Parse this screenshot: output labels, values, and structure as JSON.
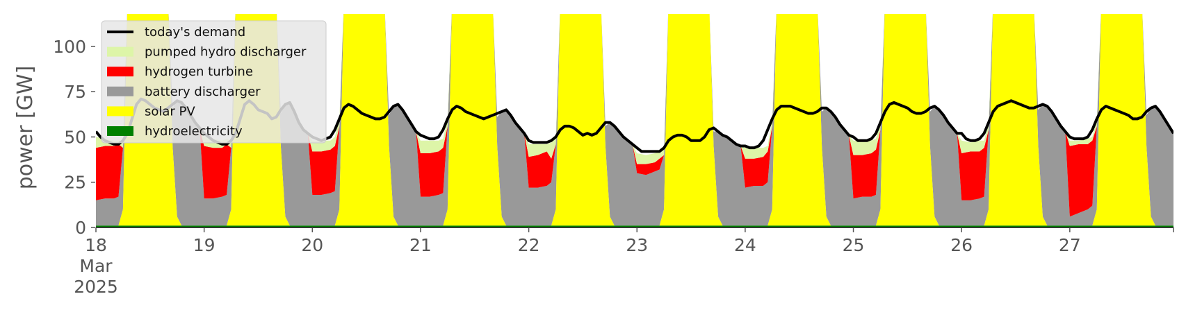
{
  "chart_data": {
    "type": "area",
    "ylabel": "power [GW]",
    "ylim": [
      0,
      118
    ],
    "xlim": [
      "2025-03-18T00:00",
      "2025-03-27T23:00"
    ],
    "yticks": [
      0,
      25,
      50,
      75,
      100
    ],
    "xticks": [
      {
        "date": "2025-03-18",
        "label": [
          "18",
          "Mar",
          "2025"
        ]
      },
      {
        "date": "2025-03-19",
        "label": [
          "19"
        ]
      },
      {
        "date": "2025-03-20",
        "label": [
          "20"
        ]
      },
      {
        "date": "2025-03-21",
        "label": [
          "21"
        ]
      },
      {
        "date": "2025-03-22",
        "label": [
          "22"
        ]
      },
      {
        "date": "2025-03-23",
        "label": [
          "23"
        ]
      },
      {
        "date": "2025-03-24",
        "label": [
          "24"
        ]
      },
      {
        "date": "2025-03-25",
        "label": [
          "25"
        ]
      },
      {
        "date": "2025-03-26",
        "label": [
          "26"
        ]
      },
      {
        "date": "2025-03-27",
        "label": [
          "27"
        ]
      }
    ],
    "grid": false,
    "legend_position": "top-left",
    "stack_order": [
      "hydroelectricity",
      "solar PV",
      "battery discharger",
      "hydrogen turbine",
      "pumped hydro discharger"
    ],
    "series": [
      {
        "name": "today's demand",
        "kind": "line",
        "color": "#000000"
      },
      {
        "name": "pumped hydro discharger",
        "kind": "area",
        "color": "#ddf5a8"
      },
      {
        "name": "hydrogen turbine",
        "kind": "area",
        "color": "#ff0000"
      },
      {
        "name": "battery discharger",
        "kind": "area",
        "color": "#999999"
      },
      {
        "name": "solar PV",
        "kind": "area",
        "color": "#ffff00"
      },
      {
        "name": "hydroelectricity",
        "kind": "area",
        "color": "#008000"
      }
    ],
    "legend": [
      {
        "label": "today's demand",
        "color": "#000000",
        "kind": "line"
      },
      {
        "label": "pumped hydro discharger",
        "color": "#ddf5a8",
        "kind": "patch"
      },
      {
        "label": "hydrogen turbine",
        "color": "#ff0000",
        "kind": "patch"
      },
      {
        "label": "battery discharger",
        "color": "#999999",
        "kind": "patch"
      },
      {
        "label": "solar PV",
        "color": "#ffff00",
        "kind": "patch"
      },
      {
        "label": "hydroelectricity",
        "color": "#008000",
        "kind": "patch"
      }
    ],
    "days": [
      {
        "date": "2025-03-18",
        "demand": [
          53,
          50,
          48,
          47,
          46,
          46,
          48,
          52,
          60,
          68,
          71,
          70,
          68,
          66,
          65,
          64,
          66,
          68,
          70,
          69,
          66,
          62,
          58,
          55
        ],
        "batt_night": [
          15,
          16,
          16,
          17
        ],
        "h2": [
          44,
          45,
          45,
          46
        ],
        "phd": [
          50,
          49,
          48,
          48
        ],
        "batt_eve": [
          45,
          48,
          52,
          55
        ]
      },
      {
        "date": "2025-03-19",
        "demand": [
          52,
          50,
          48,
          47,
          46,
          46,
          48,
          52,
          60,
          68,
          70,
          68,
          65,
          64,
          63,
          60,
          61,
          65,
          68,
          69,
          64,
          58,
          54,
          52
        ],
        "batt_night": [
          16,
          16,
          17,
          18
        ],
        "h2": [
          45,
          44,
          44,
          46
        ],
        "phd": [
          50,
          49,
          48,
          49
        ],
        "batt_eve": [
          46,
          50,
          55,
          57
        ]
      },
      {
        "date": "2025-03-20",
        "demand": [
          50,
          49,
          48,
          49,
          50,
          54,
          60,
          66,
          68,
          67,
          65,
          63,
          62,
          61,
          60,
          60,
          61,
          64,
          67,
          68,
          65,
          61,
          57,
          53
        ],
        "batt_night": [
          18,
          18,
          19,
          20
        ],
        "h2": [
          42,
          42,
          43,
          45
        ],
        "phd": [
          48,
          48,
          48,
          50
        ],
        "batt_eve": [
          52,
          58,
          62,
          60
        ]
      },
      {
        "date": "2025-03-21",
        "demand": [
          51,
          50,
          49,
          49,
          50,
          54,
          60,
          65,
          67,
          66,
          64,
          63,
          62,
          61,
          60,
          61,
          62,
          63,
          64,
          65,
          62,
          58,
          55,
          52
        ],
        "batt_night": [
          17,
          17,
          18,
          19
        ],
        "h2": [
          41,
          41,
          42,
          44
        ],
        "phd": [
          48,
          48,
          48,
          49
        ],
        "batt_eve": [
          50,
          55,
          60,
          62
        ]
      },
      {
        "date": "2025-03-22",
        "demand": [
          48,
          47,
          47,
          47,
          47,
          48,
          50,
          54,
          56,
          56,
          55,
          53,
          51,
          52,
          51,
          52,
          55,
          58,
          58,
          56,
          53,
          50,
          48,
          46
        ],
        "batt_night": [
          22,
          22,
          23,
          25
        ],
        "h2": [
          39,
          40,
          42,
          38
        ],
        "phd": [
          46,
          46,
          46,
          47
        ],
        "batt_eve": [
          48,
          52,
          55,
          55
        ]
      },
      {
        "date": "2025-03-23",
        "demand": [
          44,
          42,
          42,
          42,
          42,
          42,
          44,
          48,
          50,
          51,
          51,
          50,
          48,
          48,
          48,
          50,
          54,
          55,
          53,
          51,
          50,
          48,
          46,
          45
        ],
        "batt_night": [
          30,
          29,
          31,
          32
        ],
        "h2": [
          35,
          35,
          36,
          38
        ],
        "phd": [
          41,
          40,
          41,
          42
        ],
        "batt_eve": [
          44,
          47,
          50,
          52
        ]
      },
      {
        "date": "2025-03-24",
        "demand": [
          45,
          44,
          44,
          45,
          48,
          54,
          60,
          65,
          67,
          67,
          67,
          66,
          65,
          64,
          63,
          63,
          64,
          66,
          66,
          64,
          61,
          57,
          54,
          51
        ],
        "batt_night": [
          22,
          23,
          23,
          25
        ],
        "h2": [
          38,
          38,
          39,
          42
        ],
        "phd": [
          44,
          44,
          44,
          45
        ],
        "batt_eve": [
          50,
          55,
          60,
          62
        ]
      },
      {
        "date": "2025-03-25",
        "demand": [
          50,
          48,
          48,
          48,
          49,
          52,
          58,
          64,
          68,
          69,
          68,
          67,
          66,
          64,
          63,
          63,
          64,
          66,
          67,
          65,
          62,
          58,
          55,
          52
        ],
        "batt_night": [
          16,
          17,
          17,
          18
        ],
        "h2": [
          40,
          40,
          41,
          43
        ],
        "phd": [
          48,
          48,
          48,
          49
        ],
        "batt_eve": [
          50,
          55,
          60,
          62
        ]
      },
      {
        "date": "2025-03-26",
        "demand": [
          52,
          49,
          48,
          48,
          49,
          52,
          58,
          64,
          67,
          68,
          69,
          70,
          69,
          68,
          67,
          66,
          66,
          67,
          68,
          67,
          64,
          60,
          56,
          53
        ],
        "batt_night": [
          15,
          15,
          16,
          17
        ],
        "h2": [
          41,
          42,
          42,
          44
        ],
        "phd": [
          48,
          47,
          48,
          48
        ],
        "batt_eve": [
          50,
          55,
          58,
          60
        ]
      },
      {
        "date": "2025-03-27",
        "demand": [
          50,
          49,
          49,
          49,
          50,
          54,
          60,
          65,
          67,
          66,
          65,
          64,
          63,
          62,
          60,
          60,
          61,
          64,
          66,
          67,
          64,
          60,
          56,
          52
        ],
        "batt_night": [
          6,
          8,
          10,
          12
        ],
        "h2": [
          45,
          46,
          46,
          48
        ],
        "phd": [
          48,
          48,
          49,
          50
        ],
        "batt_eve": [
          50,
          55,
          58,
          60
        ]
      }
    ]
  }
}
